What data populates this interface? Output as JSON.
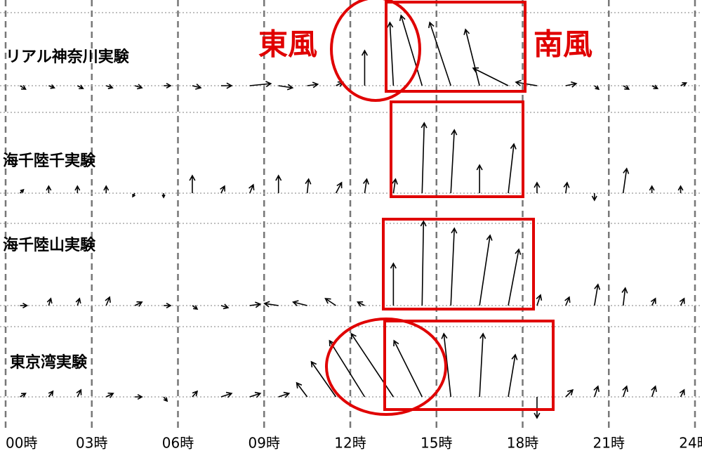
{
  "chart_data": {
    "type": "quiver",
    "grid": true,
    "xlim": [
      0,
      24
    ],
    "xticks": [
      {
        "value": 0,
        "label": "00時"
      },
      {
        "value": 3,
        "label": "03時"
      },
      {
        "value": 6,
        "label": "06時"
      },
      {
        "value": 9,
        "label": "09時"
      },
      {
        "value": 12,
        "label": "12時"
      },
      {
        "value": 15,
        "label": "15時"
      },
      {
        "value": 18,
        "label": "18時"
      },
      {
        "value": 21,
        "label": "21時"
      },
      {
        "value": 24,
        "label": "24時"
      }
    ],
    "annotations": [
      "東風",
      "南風"
    ],
    "series": [
      {
        "name": "リアル神奈川実験",
        "color": "#000000",
        "x": [
          0.5,
          1.5,
          2.5,
          3.5,
          4.5,
          5.5,
          6.5,
          7.5,
          8.5,
          9.5,
          10.5,
          11.5,
          12.5,
          13.5,
          14.5,
          15.5,
          16.5,
          17.5,
          18.5,
          19.5,
          20.5,
          21.5,
          22.5,
          23.5
        ],
        "u": [
          0.8,
          0.8,
          0.8,
          0.9,
          1,
          1,
          1.2,
          1.5,
          3,
          2,
          1.5,
          1,
          0,
          -0.5,
          -3,
          -3,
          -2,
          -5,
          -3,
          1.5,
          0.6,
          0.8,
          0.8,
          0.8
        ],
        "v": [
          -0.5,
          -0.3,
          -0.4,
          -0.3,
          -0.3,
          0,
          -0.3,
          0,
          0.3,
          -0.3,
          0.2,
          0.5,
          5,
          9,
          10,
          9,
          8,
          2.5,
          0.5,
          0.3,
          -0.5,
          -0.5,
          -0.4,
          0.4
        ]
      },
      {
        "name": "海千陸千実験",
        "color": "#000000",
        "x": [
          0.5,
          1.5,
          2.5,
          3.5,
          4.5,
          5.5,
          6.5,
          7.5,
          8.5,
          9.5,
          10.5,
          11.5,
          12.5,
          13.5,
          14.5,
          15.5,
          16.5,
          17.5,
          18.5,
          19.5,
          20.5,
          21.5,
          22.5,
          23.5
        ],
        "u": [
          0.5,
          0,
          0,
          0,
          -0.3,
          0,
          0,
          0.5,
          0.5,
          0,
          0.2,
          0.8,
          0.3,
          0.3,
          0.3,
          0.5,
          0,
          0.8,
          0,
          0.2,
          0,
          0.5,
          0,
          0
        ],
        "v": [
          0.5,
          1,
          1,
          1,
          -0.5,
          -0.6,
          2.5,
          1,
          1.2,
          2.5,
          2,
          1.5,
          2,
          2,
          10,
          9,
          4,
          7,
          1.5,
          1.5,
          -1,
          3.5,
          1,
          1
        ]
      },
      {
        "name": "海千陸山実験",
        "color": "#000000",
        "x": [
          0.5,
          1.5,
          2.5,
          3.5,
          4.5,
          5.5,
          6.5,
          7.5,
          8.5,
          9.5,
          10.5,
          11.5,
          12.5,
          13.5,
          14.5,
          15.5,
          16.5,
          17.5,
          18.5,
          19.5,
          20.5,
          21.5,
          22.5,
          23.5
        ],
        "u": [
          1,
          0.3,
          0.3,
          0.5,
          1,
          1,
          0.7,
          1,
          1.5,
          -2,
          -2,
          -1.5,
          -1,
          0,
          0.2,
          0.5,
          1.5,
          1.5,
          0.5,
          0.5,
          0.5,
          0.3,
          0.5,
          0.5
        ],
        "v": [
          0,
          1,
          1,
          1.2,
          0.5,
          0,
          -0.5,
          -0.3,
          0.2,
          0.3,
          0.5,
          1,
          0.5,
          6,
          12,
          11,
          10,
          8,
          1.5,
          1.2,
          3,
          2.5,
          1,
          1
        ]
      },
      {
        "name": "東京湾実験",
        "color": "#000000",
        "x": [
          0.5,
          1.5,
          2.5,
          3.5,
          4.5,
          5.5,
          6.5,
          7.5,
          8.5,
          9.5,
          10.5,
          11.5,
          12.5,
          13.5,
          14.5,
          15.5,
          16.5,
          17.5,
          18.5,
          19.5,
          20.5,
          21.5,
          22.5,
          23.5
        ],
        "u": [
          0.8,
          0.6,
          0.5,
          1,
          1,
          0.5,
          0.7,
          1.5,
          1.5,
          1.5,
          -1.5,
          -3.5,
          -5,
          -6,
          -4,
          -1,
          0.5,
          1,
          0,
          1,
          0.5,
          0.5,
          0.5,
          0.5
        ],
        "v": [
          0.5,
          0.8,
          1,
          0.5,
          0,
          -0.6,
          0.8,
          0.5,
          0.5,
          0.5,
          2,
          5,
          8,
          9,
          8,
          9,
          9,
          6,
          -3,
          1,
          1.5,
          1.5,
          1.5,
          1
        ]
      }
    ]
  }
}
